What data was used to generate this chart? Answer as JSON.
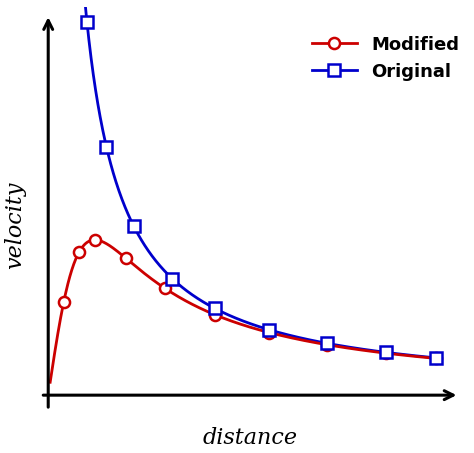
{
  "title": "",
  "xlabel": "distance",
  "ylabel": "velocity",
  "background_color": "#ffffff",
  "modified_color": "#cc0000",
  "original_color": "#0000cc",
  "modified_marker": "o",
  "original_marker": "s",
  "legend_modified": "Modified",
  "legend_original": "Original",
  "figsize": [
    4.74,
    4.53
  ],
  "dpi": 100
}
